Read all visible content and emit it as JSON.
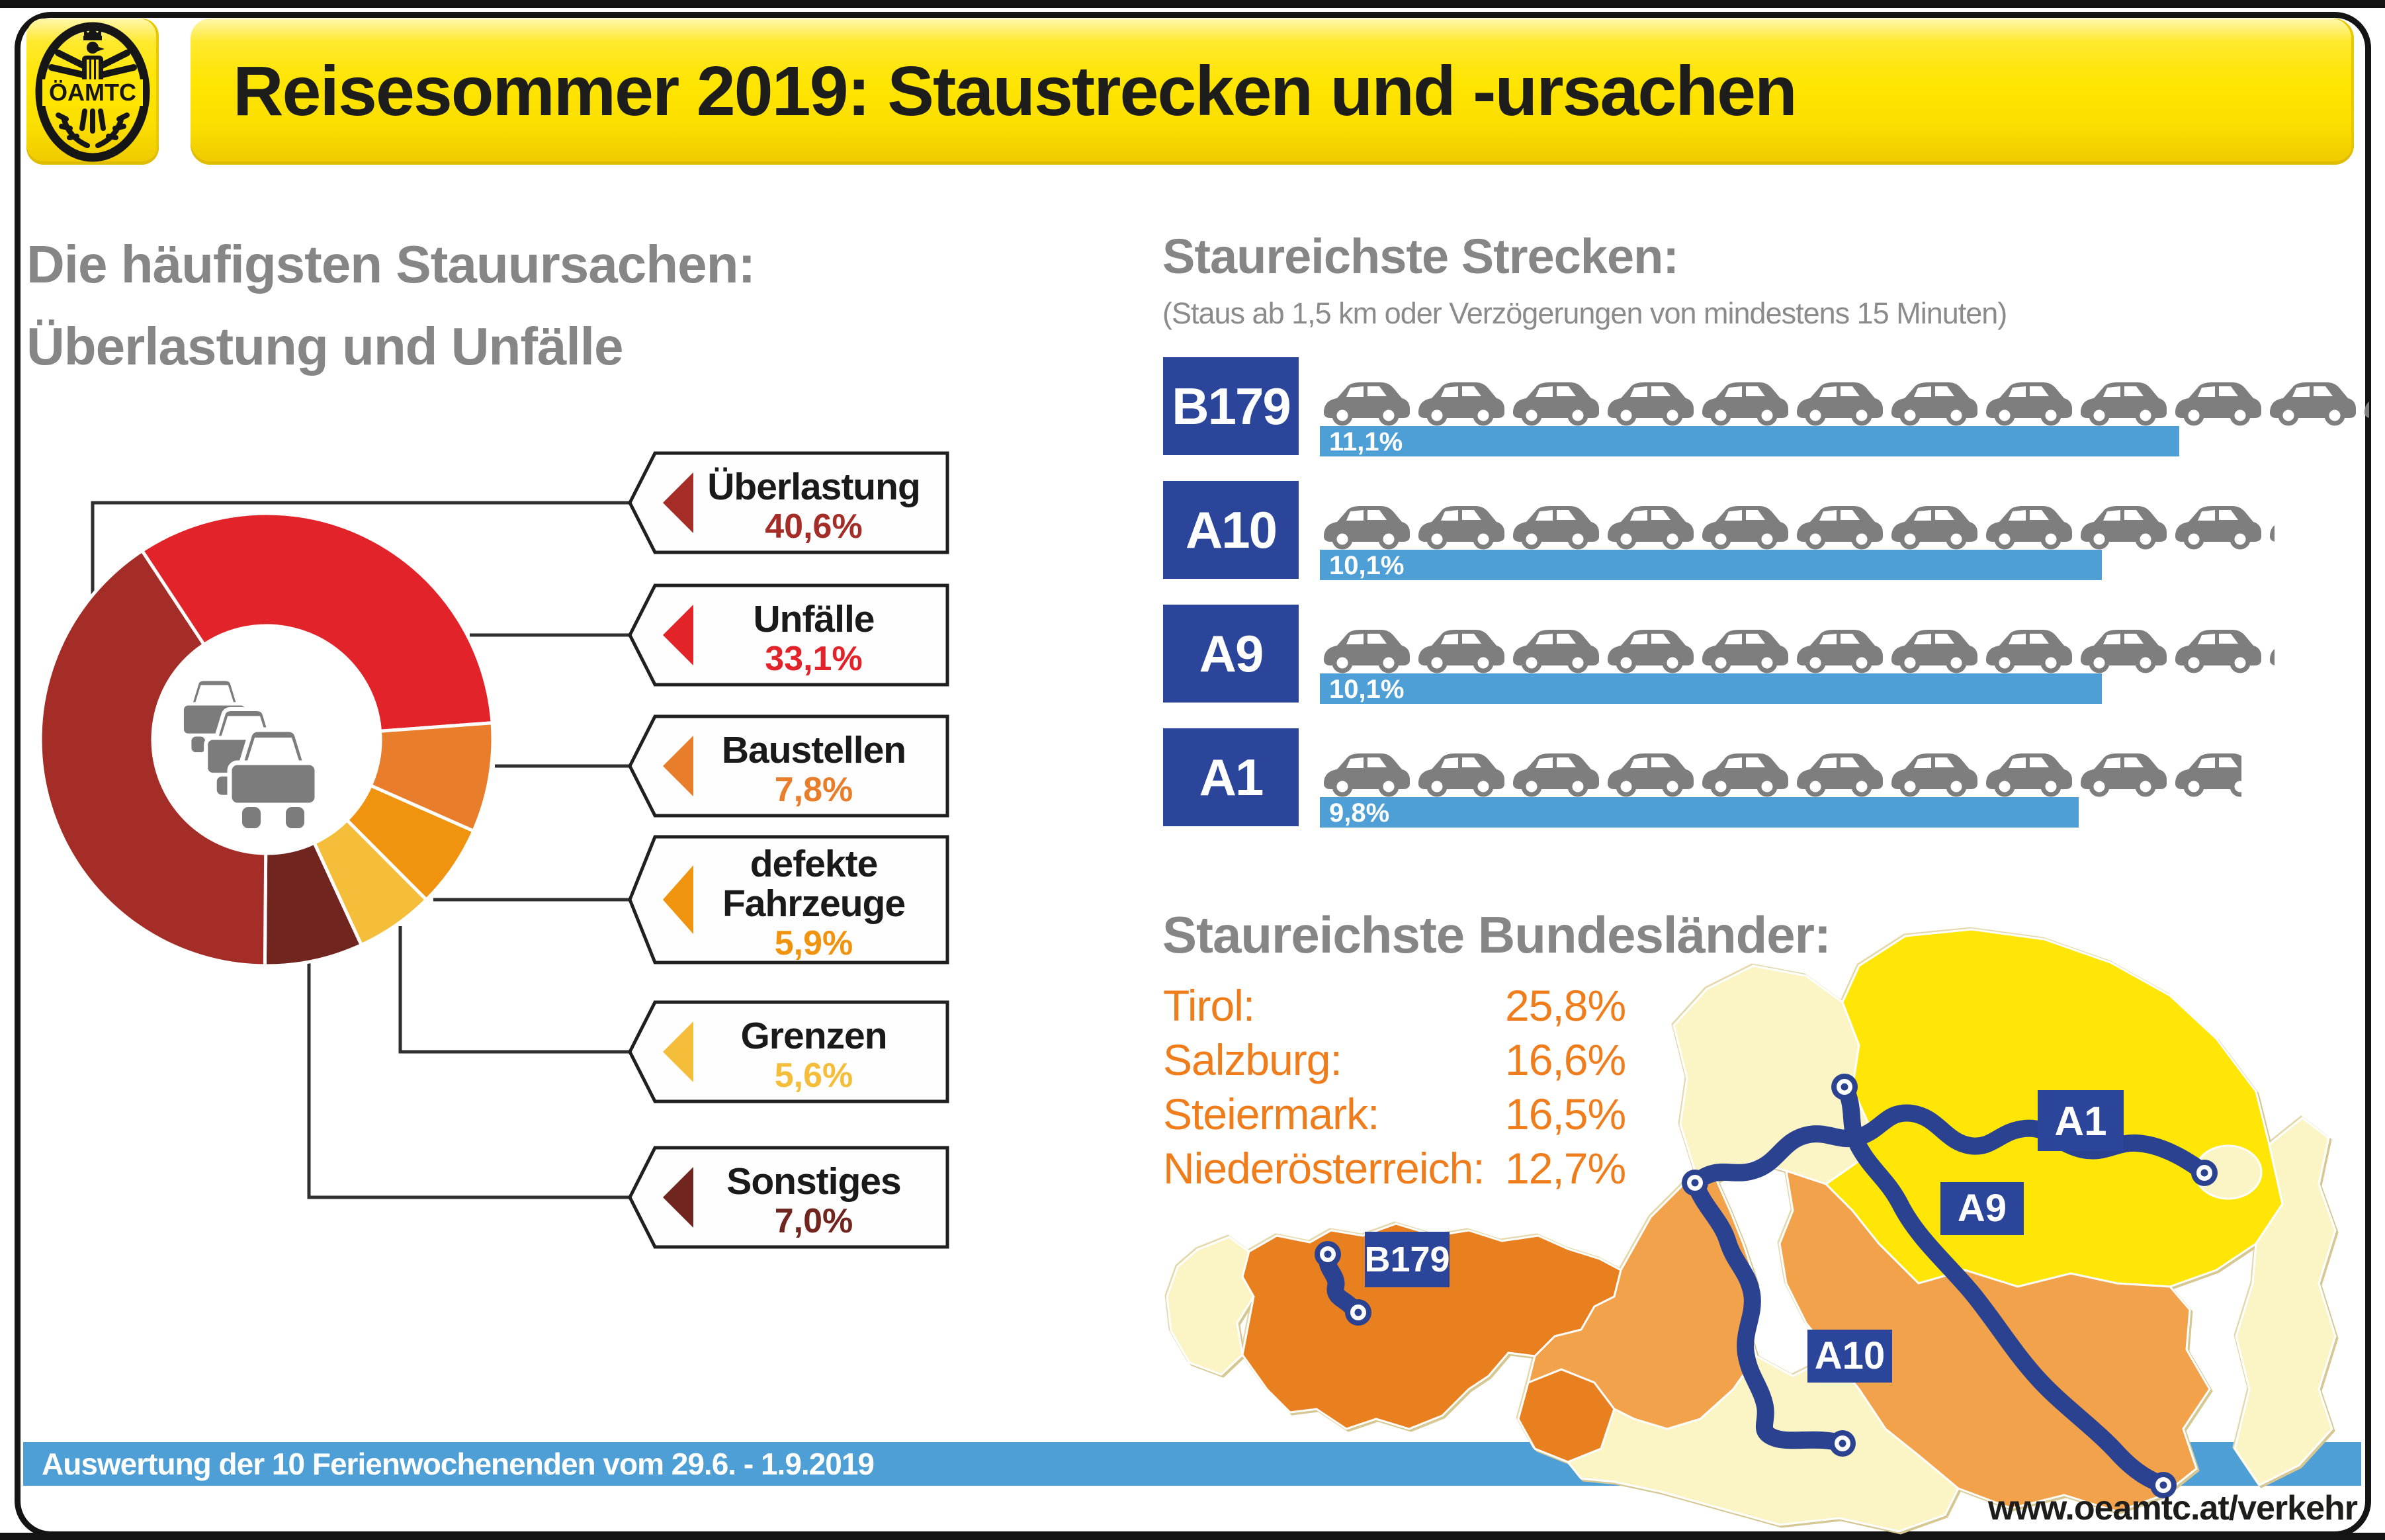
{
  "header": {
    "logo_text": "ÖAMTC",
    "title": "Reisesommer 2019: Staustrecken und -ursachen"
  },
  "causes_section": {
    "heading_line1": "Die häufigsten Stauursachen:",
    "heading_line2": "Überlastung und Unfälle"
  },
  "routes_section": {
    "heading": "Staureichste Strecken:",
    "subheading": "(Staus ab 1,5 km oder Verzögerungen von mindestens 15 Minuten)"
  },
  "states_section": {
    "heading": "Staureichste Bundesländer:"
  },
  "footer": {
    "note": "Auswertung der 10 Ferienwochenenden vom 29.6. - 1.9.2019",
    "url": "www.oeamtc.at/verkehr"
  },
  "map": {
    "labels": {
      "a1": "A1",
      "a9": "A9",
      "a10": "A10",
      "b179": "B179"
    }
  },
  "colors": {
    "accent_yellow": "#ffe500",
    "heading_gray": "#868686",
    "orange_text": "#ef7d1c",
    "bar_blue": "#4d9fd6",
    "route_label_blue": "#2a459a",
    "route_line_blue": "#2b4291",
    "car_gray": "#7e7e7e",
    "map_pale": "#fbf4c5",
    "map_yellow": "#ffe607",
    "map_orange": "#f2a24b",
    "map_dark_orange": "#e8801f"
  },
  "chart_data": [
    {
      "type": "pie",
      "title": "Die häufigsten Stauursachen",
      "categories": [
        "Überlastung",
        "Unfälle",
        "Baustellen",
        "defekte Fahrzeuge",
        "Grenzen",
        "Sonstiges"
      ],
      "values": [
        40.6,
        33.1,
        7.8,
        5.9,
        5.6,
        7.0
      ],
      "value_labels": [
        "40,6%",
        "33,1%",
        "7,8%",
        "5,9%",
        "5,6%",
        "7,0%"
      ],
      "colors": [
        "#a42d28",
        "#e2242a",
        "#e87e2b",
        "#f0940f",
        "#f5be3a",
        "#71251f"
      ],
      "donut": true,
      "start_angle_deg": -33.4,
      "draw_order": [
        1,
        2,
        3,
        4,
        5,
        0
      ]
    },
    {
      "type": "bar",
      "title": "Staureichste Strecken",
      "categories": [
        "B179",
        "A10",
        "A9",
        "A1"
      ],
      "values": [
        11.1,
        10.1,
        10.1,
        9.8
      ],
      "value_labels": [
        "11,1%",
        "10,1%",
        "10,1%",
        "9,8%"
      ],
      "unit": "percent",
      "orientation": "horizontal"
    },
    {
      "type": "table",
      "title": "Staureichste Bundesländer",
      "categories": [
        "Tirol:",
        "Salzburg:",
        "Steiermark:",
        "Niederösterreich:"
      ],
      "values": [
        25.8,
        16.6,
        16.5,
        12.7
      ],
      "value_labels": [
        "25,8%",
        "16,6%",
        "16,5%",
        "12,7%"
      ]
    }
  ]
}
